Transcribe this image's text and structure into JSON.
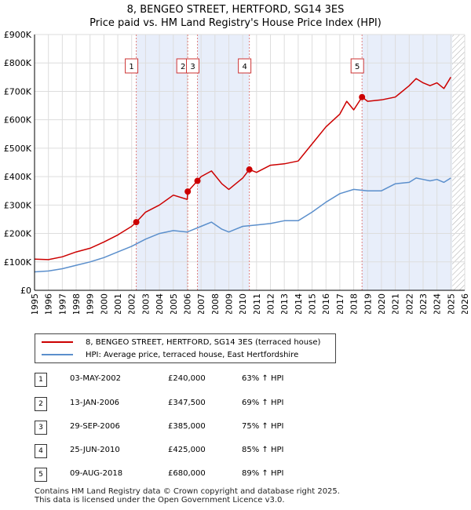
{
  "title_line1": "8, BENGEO STREET, HERTFORD, SG14 3ES",
  "title_line2": "Price paid vs. HM Land Registry's House Price Index (HPI)",
  "legend": {
    "property_label": "8, BENGEO STREET, HERTFORD, SG14 3ES (terraced house)",
    "hpi_label": "HPI: Average price, terraced house, East Hertfordshire"
  },
  "colors": {
    "property": "#cc0000",
    "hpi": "#5b8fcc",
    "band": "#e8eefa",
    "marker_line": "#e08080"
  },
  "transactions": [
    {
      "num": "1",
      "date": "03-MAY-2002",
      "price": "£240,000",
      "hpi": "63% ↑ HPI"
    },
    {
      "num": "2",
      "date": "13-JAN-2006",
      "price": "£347,500",
      "hpi": "69% ↑ HPI"
    },
    {
      "num": "3",
      "date": "29-SEP-2006",
      "price": "£385,000",
      "hpi": "75% ↑ HPI"
    },
    {
      "num": "4",
      "date": "25-JUN-2010",
      "price": "£425,000",
      "hpi": "85% ↑ HPI"
    },
    {
      "num": "5",
      "date": "09-AUG-2018",
      "price": "£680,000",
      "hpi": "89% ↑ HPI"
    }
  ],
  "footer_line1": "Contains HM Land Registry data © Crown copyright and database right 2025.",
  "footer_line2": "This data is licensed under the Open Government Licence v3.0.",
  "chart_data": {
    "type": "line",
    "title": "Price paid vs. HM Land Registry's House Price Index (HPI)",
    "xlim": [
      1995,
      2026
    ],
    "ylim": [
      0,
      900000
    ],
    "x_ticks": [
      1995,
      1996,
      1997,
      1998,
      1999,
      2000,
      2001,
      2002,
      2003,
      2004,
      2005,
      2006,
      2007,
      2008,
      2009,
      2010,
      2011,
      2012,
      2013,
      2014,
      2015,
      2016,
      2017,
      2018,
      2019,
      2020,
      2021,
      2022,
      2023,
      2024,
      2025,
      2026
    ],
    "y_ticks": [
      0,
      100000,
      200000,
      300000,
      400000,
      500000,
      600000,
      700000,
      800000,
      900000
    ],
    "y_tick_labels": [
      "£0",
      "£100K",
      "£200K",
      "£300K",
      "£400K",
      "£500K",
      "£600K",
      "£700K",
      "£800K",
      "£900K"
    ],
    "shaded_bands": [
      [
        2002.33,
        2006.04
      ],
      [
        2006.74,
        2010.48
      ],
      [
        2018.6,
        2025.1
      ]
    ],
    "hatched_from": 2025.1,
    "markers": [
      {
        "label": "1",
        "x": 2002.33,
        "y": 240000
      },
      {
        "label": "2",
        "x": 2006.04,
        "y": 347500
      },
      {
        "label": "3",
        "x": 2006.74,
        "y": 385000
      },
      {
        "label": "4",
        "x": 2010.48,
        "y": 425000
      },
      {
        "label": "5",
        "x": 2018.6,
        "y": 680000
      }
    ],
    "series": [
      {
        "name": "8, BENGEO STREET, HERTFORD, SG14 3ES (terraced house)",
        "x": [
          1995,
          1996,
          1997,
          1998,
          1999,
          2000,
          2001,
          2002,
          2002.33,
          2003,
          2004,
          2005,
          2006,
          2006.04,
          2006.74,
          2007,
          2007.75,
          2008.5,
          2009,
          2009.5,
          2010,
          2010.48,
          2011,
          2012,
          2013,
          2014,
          2015,
          2016,
          2017,
          2017.5,
          2018,
          2018.6,
          2019,
          2020,
          2021,
          2022,
          2022.5,
          2023,
          2023.5,
          2024,
          2024.5,
          2025
        ],
        "y": [
          110000,
          108000,
          118000,
          135000,
          148000,
          170000,
          195000,
          225000,
          240000,
          275000,
          300000,
          335000,
          320000,
          347500,
          385000,
          400000,
          420000,
          375000,
          355000,
          375000,
          395000,
          425000,
          415000,
          440000,
          445000,
          455000,
          515000,
          575000,
          620000,
          665000,
          635000,
          680000,
          665000,
          670000,
          680000,
          720000,
          745000,
          730000,
          720000,
          730000,
          710000,
          750000
        ]
      },
      {
        "name": "HPI: Average price, terraced house, East Hertfordshire",
        "x": [
          1995,
          1996,
          1997,
          1998,
          1999,
          2000,
          2001,
          2002,
          2003,
          2004,
          2005,
          2006,
          2007,
          2007.75,
          2008.5,
          2009,
          2009.5,
          2010,
          2011,
          2012,
          2013,
          2014,
          2015,
          2016,
          2017,
          2018,
          2019,
          2020,
          2021,
          2022,
          2022.5,
          2023,
          2023.5,
          2024,
          2024.5,
          2025
        ],
        "y": [
          65000,
          68000,
          76000,
          88000,
          100000,
          115000,
          135000,
          155000,
          180000,
          200000,
          210000,
          205000,
          225000,
          240000,
          215000,
          205000,
          215000,
          225000,
          230000,
          235000,
          245000,
          245000,
          275000,
          310000,
          340000,
          355000,
          350000,
          350000,
          375000,
          380000,
          395000,
          390000,
          385000,
          390000,
          380000,
          395000
        ]
      }
    ]
  }
}
